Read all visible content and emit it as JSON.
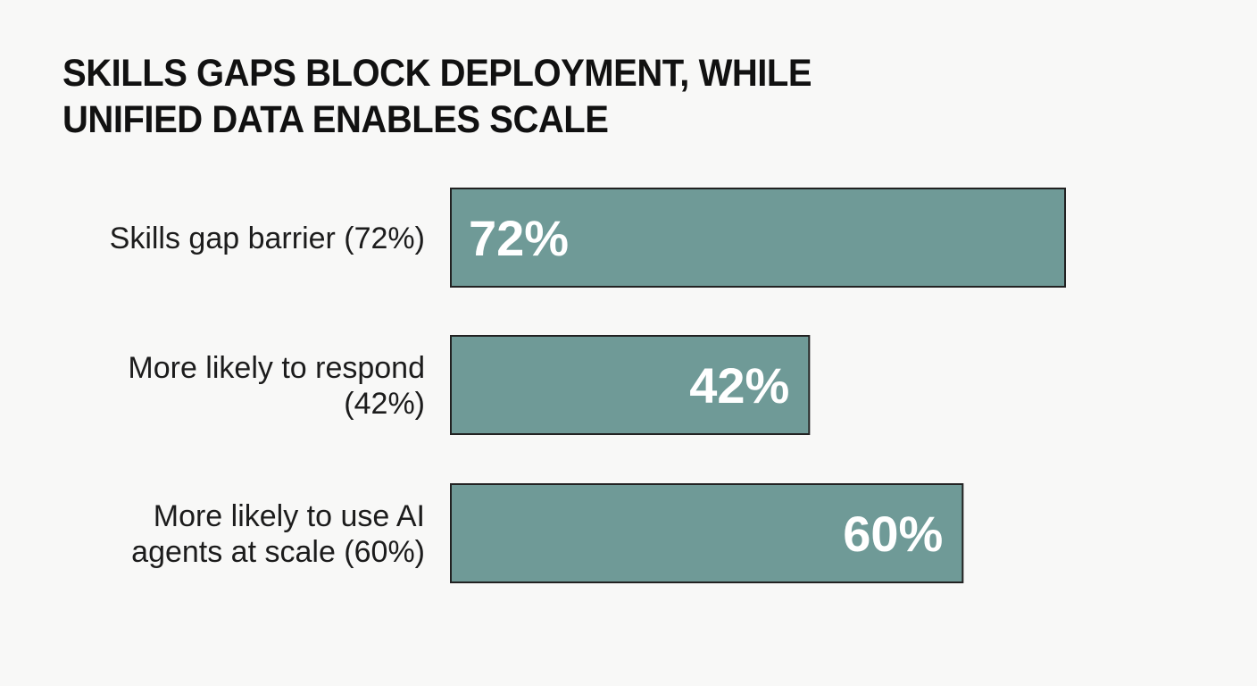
{
  "chart_data": {
    "type": "bar",
    "orientation": "horizontal",
    "title_lines": [
      "SKILLS GAPS BLOCK DEPLOYMENT, WHILE",
      "UNIFIED DATA ENABLES SCALE"
    ],
    "categories": [
      [
        "Skills gap barrier (72%)"
      ],
      [
        "More likely to respond",
        "(42%)"
      ],
      [
        "More likely to use AI",
        "agents at scale (60%)"
      ]
    ],
    "values": [
      72,
      42,
      60
    ],
    "value_labels": [
      "72%",
      "42%",
      "60%"
    ],
    "value_label_position": [
      "left",
      "right",
      "right"
    ],
    "bar_color": "#6f9a97",
    "bar_border_color": "#222222",
    "xlim": [
      0,
      100
    ],
    "grid": false,
    "legend": "none"
  }
}
